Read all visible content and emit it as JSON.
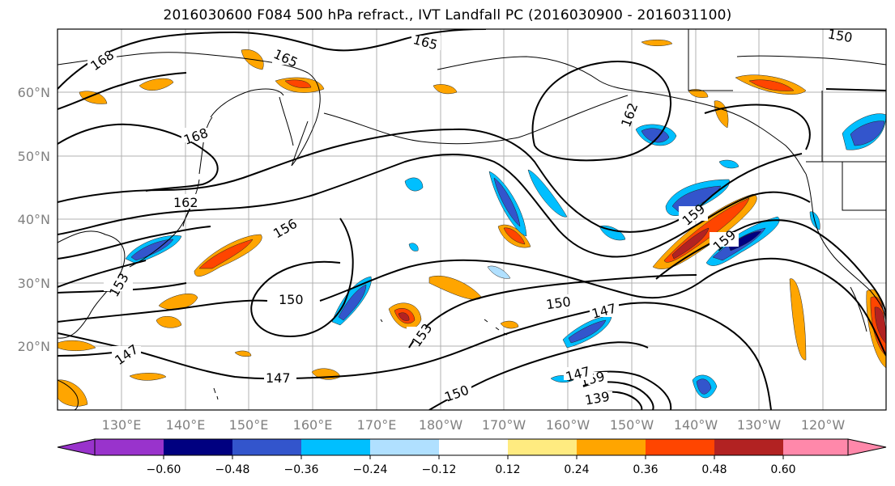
{
  "title": "2016030600 F084 500 hPa refract., IVT Landfall PC (2016030900 - 2016031100)",
  "lat_labels": [
    "60°N",
    "50°N",
    "40°N",
    "30°N",
    "20°N"
  ],
  "lon_labels": [
    "130°E",
    "140°E",
    "150°E",
    "160°E",
    "170°E",
    "180°W",
    "170°W",
    "160°W",
    "150°W",
    "140°W",
    "130°W",
    "120°W"
  ],
  "contour_labels": [
    "168",
    "165",
    "165",
    "168",
    "162",
    "162",
    "156",
    "159",
    "159",
    "153",
    "150",
    "150",
    "153",
    "147",
    "147",
    "150",
    "147",
    "150",
    "159",
    "139",
    "147"
  ],
  "colorbar": {
    "colors": [
      "#9933cc",
      "#000080",
      "#3355cc",
      "#00bfff",
      "#b0e0ff",
      "#ffffff",
      "#ffeb80",
      "#ffa500",
      "#ff4500",
      "#b22222",
      "#ff88aa"
    ],
    "tick_labels": [
      "−0.60",
      "−0.48",
      "−0.36",
      "−0.24",
      "−0.12",
      "0.12",
      "0.24",
      "0.36",
      "0.48",
      "0.60"
    ]
  }
}
